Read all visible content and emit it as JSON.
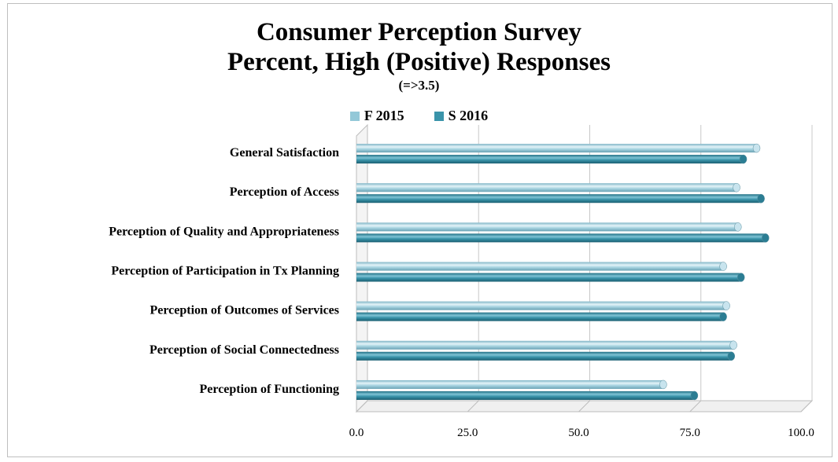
{
  "chart_data": {
    "type": "bar",
    "orientation": "horizontal",
    "title": "Consumer Perception Survey",
    "title_line2": "Percent, High (Positive) Responses",
    "subtitle": "(=>3.5)",
    "categories": [
      "General Satisfaction",
      "Perception of Access",
      "Perception of Quality and Appropriateness",
      "Perception of Participation in Tx Planning",
      "Perception of Outcomes of Services",
      "Perception of  Social Connectedness",
      "Perception of Functioning"
    ],
    "series": [
      {
        "name": "F 2015",
        "color": "#93c8d8",
        "values": [
          90,
          85.5,
          85.8,
          82.5,
          83.2,
          84.8,
          69
        ]
      },
      {
        "name": "S 2016",
        "color": "#3a94aa",
        "values": [
          87,
          91,
          92,
          86.5,
          82.5,
          84.3,
          76
        ]
      }
    ],
    "xlim": [
      0,
      100
    ],
    "xticks": [
      "0.0",
      "25.0",
      "50.0",
      "75.0",
      "100.0"
    ],
    "grid": true,
    "legend_position": "top-center"
  }
}
